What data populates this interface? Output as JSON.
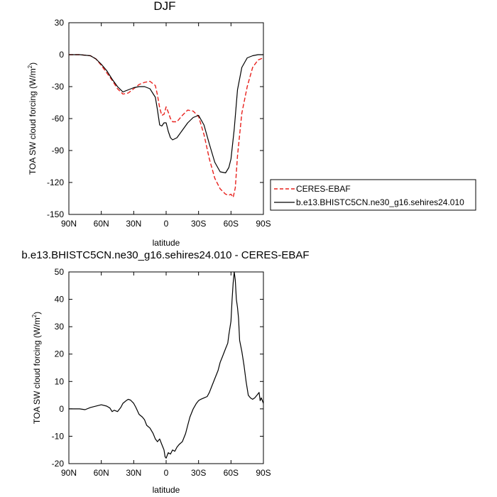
{
  "chart_data": [
    {
      "type": "line",
      "title": "DJF",
      "xlabel": "latitude",
      "ylabel": "TOA SW cloud forcing (W/m",
      "ylabel_sup": "2",
      "ylabel_end": ")",
      "xlim": [
        90,
        -90
      ],
      "ylim": [
        -150,
        30
      ],
      "xticks": [
        90,
        60,
        30,
        0,
        -30,
        -60,
        -90
      ],
      "xtick_labels": [
        "90N",
        "60N",
        "30N",
        "0",
        "30S",
        "60S",
        "90S"
      ],
      "yticks": [
        30,
        0,
        -30,
        -60,
        -90,
        -120,
        -150
      ],
      "ytick_labels": [
        "30",
        "0",
        "-30",
        "-60",
        "-90",
        "-120",
        "-150"
      ],
      "legend_position": "right-bottom outside",
      "series": [
        {
          "name": "CERES-EBAF",
          "color": "#e8211d",
          "dash": "dashed",
          "x": [
            90,
            80,
            70,
            65,
            60,
            55,
            50,
            45,
            40,
            35,
            30,
            25,
            20,
            15,
            10,
            8,
            6,
            4,
            2,
            0,
            -2,
            -4,
            -6,
            -10,
            -15,
            -20,
            -25,
            -30,
            -35,
            -40,
            -45,
            -50,
            -55,
            -58,
            -60,
            -62,
            -64,
            -66,
            -70,
            -75,
            -80,
            -85,
            -90
          ],
          "y": [
            0,
            0,
            -1,
            -4,
            -10,
            -17,
            -24,
            -32,
            -37,
            -36,
            -32,
            -28,
            -26,
            -25,
            -29,
            -38,
            -50,
            -57,
            -56,
            -49,
            -54,
            -60,
            -63,
            -63,
            -57,
            -52,
            -53,
            -58,
            -75,
            -98,
            -116,
            -126,
            -131,
            -132,
            -131,
            -134,
            -125,
            -95,
            -55,
            -30,
            -12,
            -5,
            -3
          ]
        },
        {
          "name": "b.e13.BHISTC5CN.ne30_g16.sehires24.010",
          "color": "#000000",
          "dash": "solid",
          "x": [
            90,
            80,
            70,
            65,
            60,
            55,
            50,
            45,
            40,
            35,
            30,
            25,
            20,
            15,
            10,
            8,
            6,
            4,
            2,
            0,
            -2,
            -4,
            -6,
            -10,
            -15,
            -20,
            -25,
            -30,
            -35,
            -40,
            -45,
            -50,
            -55,
            -58,
            -60,
            -63,
            -66,
            -70,
            -75,
            -80,
            -85,
            -90
          ],
          "y": [
            0,
            0,
            -1,
            -4,
            -9,
            -15,
            -23,
            -30,
            -35,
            -33,
            -31,
            -30,
            -30,
            -32,
            -40,
            -52,
            -66,
            -67,
            -64,
            -64,
            -72,
            -78,
            -80,
            -78,
            -71,
            -64,
            -59,
            -57,
            -66,
            -84,
            -101,
            -110,
            -111,
            -106,
            -98,
            -70,
            -33,
            -12,
            -3,
            -1,
            0,
            0
          ]
        }
      ]
    },
    {
      "type": "line",
      "title": "b.e13.BHISTC5CN.ne30_g16.sehires24.010 - CERES-EBAF",
      "xlabel": "latitude",
      "ylabel": "TOA SW cloud forcing (W/m",
      "ylabel_sup": "2",
      "ylabel_end": ")",
      "xlim": [
        90,
        -90
      ],
      "ylim": [
        -20,
        50
      ],
      "xticks": [
        90,
        60,
        30,
        0,
        -30,
        -60,
        -90
      ],
      "xtick_labels": [
        "90N",
        "60N",
        "30N",
        "0",
        "30S",
        "60S",
        "90S"
      ],
      "yticks": [
        50,
        40,
        30,
        20,
        10,
        0,
        -10,
        -20
      ],
      "ytick_labels": [
        "50",
        "40",
        "30",
        "20",
        "10",
        "0",
        "-10",
        "-20"
      ],
      "series": [
        {
          "color": "#000000",
          "dash": "solid",
          "x": [
            90,
            80,
            75,
            70,
            60,
            55,
            52,
            50,
            48,
            45,
            42,
            40,
            37,
            35,
            33,
            30,
            28,
            25,
            22,
            20,
            18,
            15,
            12,
            10,
            8,
            6,
            4,
            2,
            1,
            0,
            -1,
            -2,
            -4,
            -6,
            -8,
            -10,
            -12,
            -15,
            -18,
            -20,
            -22,
            -25,
            -28,
            -30,
            -32,
            -35,
            -38,
            -40,
            -42,
            -45,
            -48,
            -50,
            -52,
            -55,
            -57,
            -58,
            -60,
            -61,
            -62,
            -63,
            -64,
            -65,
            -66,
            -67,
            -68,
            -70,
            -72,
            -74,
            -76,
            -78,
            -80,
            -82,
            -84,
            -86,
            -87,
            -88,
            -89,
            -90
          ],
          "y": [
            0,
            0,
            -0.3,
            0.5,
            1.5,
            1,
            0.3,
            -1,
            -0.5,
            -1,
            0.5,
            2,
            3,
            3.5,
            3.2,
            2,
            0.5,
            -2,
            -3,
            -4,
            -6,
            -7,
            -9,
            -11,
            -12,
            -11,
            -13,
            -15,
            -17.5,
            -18,
            -17,
            -16,
            -16.5,
            -15,
            -15.5,
            -14,
            -13,
            -12,
            -9,
            -6,
            -3,
            0,
            2,
            3,
            3.5,
            4,
            4.5,
            6,
            8,
            11,
            14,
            17,
            19,
            22,
            24,
            27,
            32,
            40,
            46,
            50,
            47,
            40,
            37,
            33,
            25,
            21,
            16,
            10,
            5,
            4,
            3.5,
            4,
            5,
            6,
            3,
            4,
            3,
            2
          ]
        }
      ]
    }
  ]
}
